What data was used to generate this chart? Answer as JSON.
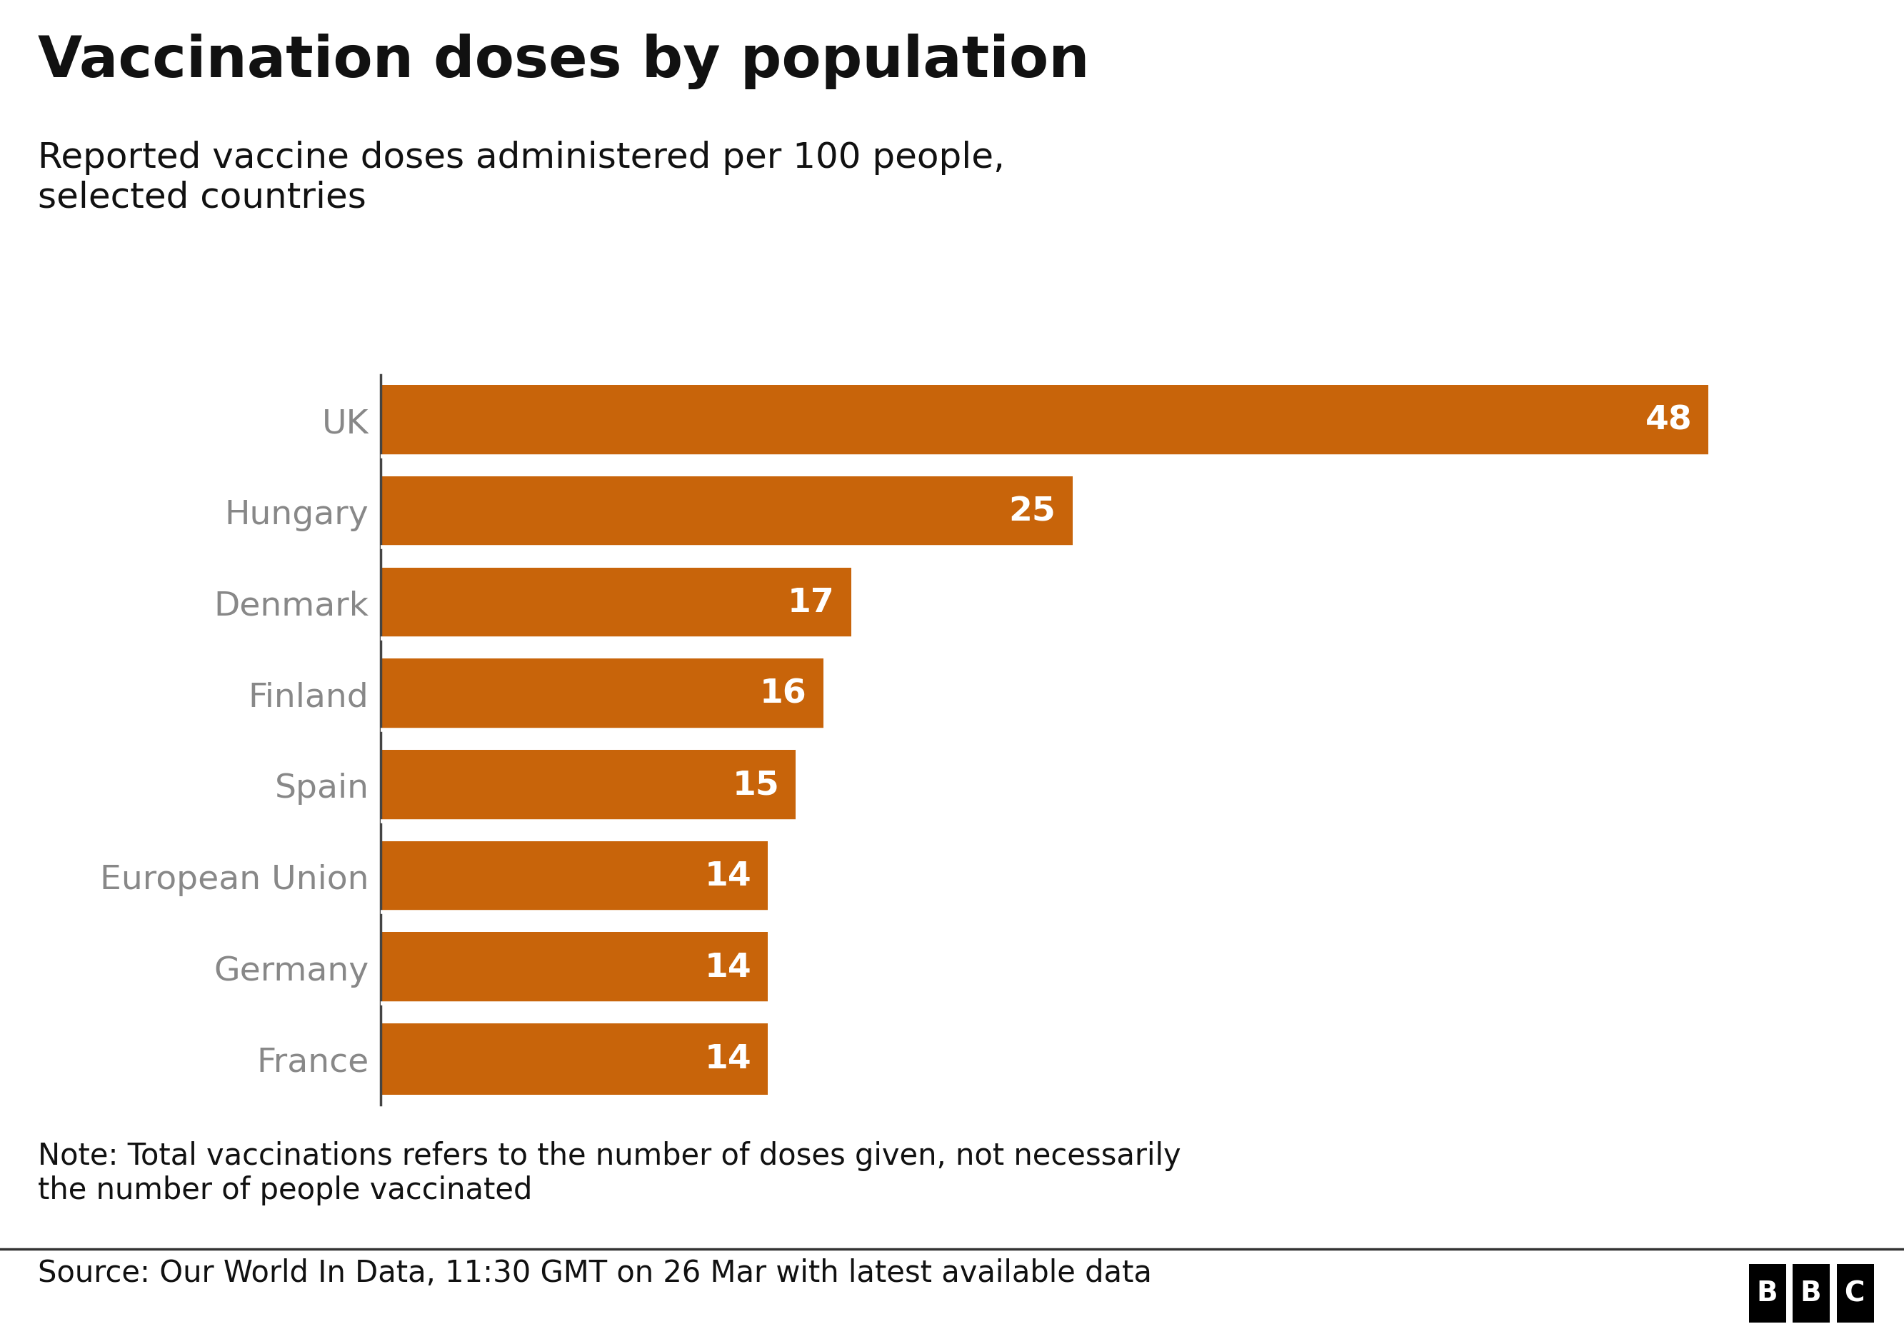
{
  "title": "Vaccination doses by population",
  "subtitle": "Reported vaccine doses administered per 100 people,\nselected countries",
  "categories": [
    "UK",
    "Hungary",
    "Denmark",
    "Finland",
    "Spain",
    "European Union",
    "Germany",
    "France"
  ],
  "values": [
    48,
    25,
    17,
    16,
    15,
    14,
    14,
    14
  ],
  "bar_color": "#c8640a",
  "bar_label_color": "#ffffff",
  "label_color": "#888888",
  "title_color": "#111111",
  "subtitle_color": "#111111",
  "note_text": "Note: Total vaccinations refers to the number of doses given, not necessarily\nthe number of people vaccinated",
  "source_text": "Source: Our World In Data, 11:30 GMT on 26 Mar with latest available data",
  "background_color": "#ffffff",
  "title_fontsize": 58,
  "subtitle_fontsize": 36,
  "bar_label_fontsize": 34,
  "category_label_fontsize": 34,
  "note_fontsize": 30,
  "source_fontsize": 30
}
